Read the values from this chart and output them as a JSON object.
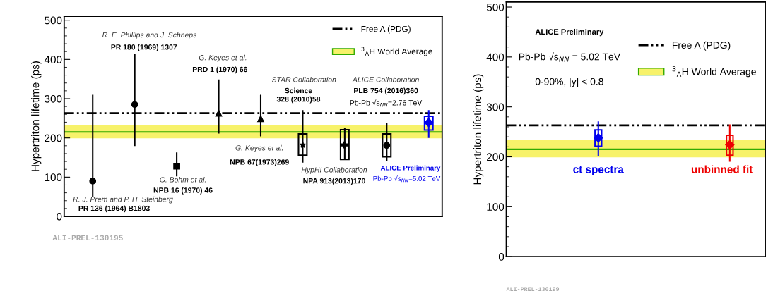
{
  "chart_data": [
    {
      "type": "scatter",
      "ylabel": "Hypertriton lifetime (ps)",
      "categories": [
        null,
        null,
        null,
        null,
        null,
        null,
        null,
        null,
        null
      ],
      "ylim": [
        0,
        510
      ],
      "yticks": [
        0,
        100,
        200,
        300,
        400,
        500
      ],
      "tick_labels": "y",
      "legend": "top right",
      "grid": false,
      "series": [
        {
          "type": "bar",
          "colors": [
            "#000000",
            "#000000",
            "#000000",
            "#000000",
            "#000000",
            "#000000",
            "#000000",
            "#000000",
            "#0000ee"
          ],
          "base": [
            null,
            null,
            null,
            null,
            null,
            156,
            145,
            152,
            220
          ],
          "values": [
            null,
            null,
            null,
            null,
            null,
            54,
            76,
            58,
            35
          ]
        },
        {
          "color": "#000000",
          "marker": "circle",
          "values": [
            90,
            null,
            null,
            null,
            null,
            null,
            null,
            null,
            null
          ],
          "errors": [
            [
              50,
              310
            ],
            null,
            null,
            null,
            null,
            null,
            null,
            null,
            null
          ]
        },
        {
          "color": "#000000",
          "marker": "circle",
          "values": [
            null,
            285,
            null,
            null,
            null,
            null,
            null,
            null,
            null
          ],
          "errors": [
            null,
            [
              179,
              414
            ],
            null,
            null,
            null,
            null,
            null,
            null,
            null
          ]
        },
        {
          "color": "#000000",
          "marker": "square",
          "values": [
            null,
            null,
            128,
            null,
            null,
            null,
            null,
            null,
            null
          ],
          "errors": [
            null,
            null,
            [
              102,
              163
            ],
            null,
            null,
            null,
            null,
            null,
            null
          ]
        },
        {
          "color": "#000000",
          "marker": "triangle",
          "values": [
            null,
            null,
            null,
            263,
            null,
            null,
            null,
            null,
            null
          ],
          "errors": [
            null,
            null,
            null,
            [
              211,
              349
            ],
            null,
            null,
            null,
            null,
            null
          ]
        },
        {
          "color": "#000000",
          "marker": "triangle",
          "values": [
            null,
            null,
            null,
            null,
            249,
            null,
            null,
            null,
            null
          ],
          "errors": [
            null,
            null,
            null,
            null,
            [
              204,
              310
            ],
            null,
            null,
            null,
            null
          ]
        },
        {
          "color": "#000000",
          "marker": "star",
          "values": [
            null,
            null,
            null,
            null,
            null,
            182,
            null,
            null,
            null
          ],
          "errors": [
            null,
            null,
            null,
            null,
            null,
            [
              137,
              271
            ],
            null,
            null,
            null
          ]
        },
        {
          "color": "#000000",
          "marker": "cross",
          "values": [
            null,
            null,
            null,
            null,
            null,
            null,
            182,
            null,
            null
          ],
          "errors": [
            null,
            null,
            null,
            null,
            null,
            null,
            [
              145,
              226
            ],
            null,
            null
          ]
        },
        {
          "color": "#000000",
          "marker": "circle",
          "values": [
            null,
            null,
            null,
            null,
            null,
            null,
            null,
            181,
            null
          ],
          "errors": [
            null,
            null,
            null,
            null,
            null,
            null,
            null,
            [
              141,
              237
            ],
            null
          ]
        },
        {
          "color": "#0000ee",
          "marker": "diamond",
          "values": [
            null,
            null,
            null,
            null,
            null,
            null,
            null,
            null,
            239
          ],
          "errors": [
            null,
            null,
            null,
            null,
            null,
            null,
            null,
            null,
            [
              200,
              271
            ]
          ]
        }
      ],
      "ref_lines": [
        {
          "axis": "y",
          "value": 263,
          "label": "Free Λ (PDG)",
          "color": "#000000",
          "line_style": "dashed"
        },
        {
          "axis": "y",
          "value": 215,
          "color": "#33aa00",
          "line_style": "solid"
        }
      ],
      "bands": [
        {
          "axis": "y",
          "from": 199,
          "to": 233,
          "label": "$^{3}$$_{Λ}$H World Average",
          "color": "#f7f26a"
        }
      ],
      "annotations": [
        "R. E. Phillips and J. Schneps",
        "PR 180 (1969) 1307",
        "G. Keyes et al.",
        "PRD 1 (1970) 66",
        "STAR Collaboration",
        "Science",
        "328 (2010)58",
        "ALICE Collaboration",
        "PLB 754 (2016)360",
        "Pb-Pb √s$_{NN}$=2.76 TeV",
        "G. Keyes et al.",
        "NPB 67(1973)269",
        "G. Bohm et al.",
        "NPB 16 (1970) 46",
        "HypHI Collaboration",
        "NPA 913(2013)170",
        "ALICE Preliminary",
        "Pb-Pb √s$_{NN}$=5.02 TeV",
        "R. J. Prem and P. H. Steinberg",
        "PR 136 (1964) B1803",
        "ALI-PREL-130195"
      ]
    },
    {
      "type": "scatter",
      "ylabel": "Hypertriton lifetime (ps)",
      "categories": [
        null,
        null
      ],
      "ylim": [
        0,
        510
      ],
      "yticks": [
        0,
        100,
        200,
        300,
        400,
        500
      ],
      "tick_labels": "y",
      "legend": "top right",
      "grid": false,
      "series": [
        {
          "type": "bar",
          "colors": [
            "#0000ee",
            "#ee0000"
          ],
          "base": [
            221,
            203
          ],
          "values": [
            33,
            40
          ]
        },
        {
          "color": "#0000ee",
          "marker": "diamond",
          "values": [
            238,
            null
          ],
          "errors": [
            [
              201,
              271
            ],
            null
          ]
        },
        {
          "color": "#ee0000",
          "marker": "diamond",
          "values": [
            null,
            224
          ],
          "errors": [
            null,
            [
              190,
              265
            ]
          ]
        }
      ],
      "ref_lines": [
        {
          "axis": "y",
          "value": 263,
          "label": "Free Λ (PDG)",
          "color": "#000000",
          "line_style": "dashed"
        },
        {
          "axis": "y",
          "value": 215,
          "color": "#33aa00",
          "line_style": "solid"
        }
      ],
      "bands": [
        {
          "axis": "y",
          "from": 199,
          "to": 234,
          "label": "$^{3}$$_{Λ}$H World Average",
          "color": "#f7f26a"
        }
      ],
      "annotations": [
        "ALICE Preliminary",
        "Pb-Pb √s$_{NN}$ = 5.02 TeV",
        "0-90%, |y| < 0.8",
        "ct spectra",
        "unbinned fit",
        "ALI-PREL-130199"
      ]
    }
  ]
}
